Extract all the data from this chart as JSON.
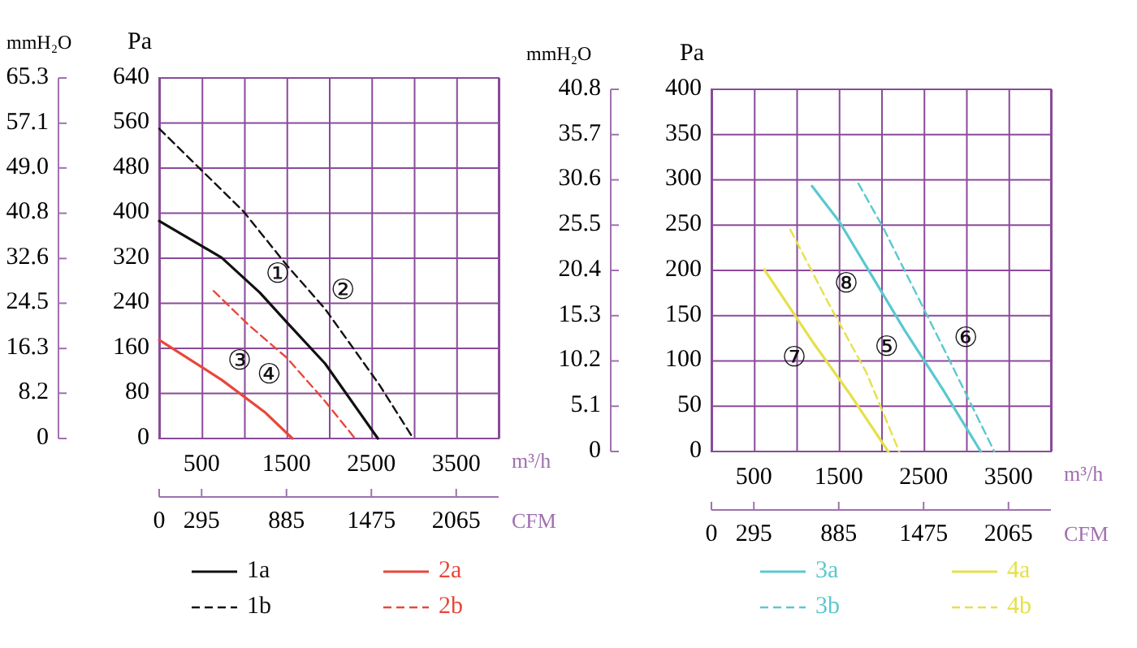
{
  "chart_data": [
    {
      "type": "line",
      "xlabel": "m³/h",
      "x2label": "CFM",
      "ylabel": "Pa",
      "y2label": "mmH₂O",
      "xlim": [
        0,
        4000
      ],
      "xticks": [
        500,
        {
          "value": 1000,
          "label": null
        },
        1500,
        {
          "value": 2000,
          "label": null
        },
        2500,
        {
          "value": 3000,
          "label": null
        },
        3500
      ],
      "x2lim": [
        0,
        2360
      ],
      "x2ticks": [
        0,
        295,
        885,
        1475,
        2065
      ],
      "ylim": [
        0,
        640
      ],
      "yticks": [
        0,
        80,
        160,
        240,
        320,
        400,
        480,
        560,
        640
      ],
      "y2lim": [
        0,
        65.3
      ],
      "y2ticks": [
        0,
        8.2,
        16.3,
        24.5,
        32.6,
        40.8,
        {
          "value": 49,
          "label": "49.0"
        },
        57.1,
        65.3
      ],
      "grid": true,
      "legend": "bottom",
      "series": [
        {
          "name": "1a",
          "color": "#111111",
          "line_style": "solid",
          "x": [
            0,
            737,
            1186,
            1506,
            1955,
            2577
          ],
          "values": [
            386,
            321,
            259,
            206,
            133,
            0
          ]
        },
        {
          "name": "1b",
          "color": "#111111",
          "line_style": "dashed",
          "x": [
            0,
            994,
            1506,
            1955,
            2596,
            2994
          ],
          "values": [
            550,
            403,
            307,
            230,
            95,
            0
          ]
        },
        {
          "name": "2a",
          "color": "#e8473a",
          "line_style": "solid",
          "x": [
            0,
            737,
            1250,
            1570
          ],
          "values": [
            175,
            104,
            46,
            0
          ]
        },
        {
          "name": "2b",
          "color": "#e8473a",
          "line_style": "dashed",
          "x": [
            641,
            1058,
            1506,
            1955,
            2308
          ],
          "values": [
            262,
            201,
            143,
            66,
            0
          ]
        }
      ],
      "annotations": [
        {
          "text": "①",
          "x": 1186,
          "y": 259
        },
        {
          "text": "②",
          "x": 1955,
          "y": 230
        },
        {
          "text": "③",
          "x": 737,
          "y": 104
        },
        {
          "text": "④",
          "x": 1506,
          "y": 143
        }
      ]
    },
    {
      "type": "line",
      "xlabel": "m³/h",
      "x2label": "CFM",
      "ylabel": "Pa",
      "y2label": "mmH₂O",
      "xlim": [
        0,
        4000
      ],
      "xticks": [
        500,
        {
          "value": 1000,
          "label": null
        },
        1500,
        {
          "value": 2000,
          "label": null
        },
        2500,
        {
          "value": 3000,
          "label": null
        },
        3500
      ],
      "x2lim": [
        0,
        2360
      ],
      "x2ticks": [
        0,
        295,
        885,
        1475,
        2065
      ],
      "ylim": [
        0,
        400
      ],
      "yticks": [
        0,
        50,
        100,
        150,
        200,
        250,
        300,
        350,
        400
      ],
      "y2lim": [
        0,
        40.8
      ],
      "y2ticks": [
        0,
        5.1,
        10.2,
        15.3,
        20.4,
        25.5,
        30.6,
        35.7,
        40.8
      ],
      "grid": true,
      "legend": "bottom",
      "series": [
        {
          "name": "3a",
          "color": "#5bc8d0",
          "line_style": "solid",
          "x": [
            1186,
            1506,
            1891,
            2276,
            2724,
            3173
          ],
          "values": [
            293,
            254,
            194,
            134,
            69,
            0
          ]
        },
        {
          "name": "3b",
          "color": "#5bc8d0",
          "line_style": "dashed",
          "x": [
            1731,
            2019,
            2404,
            2788,
            3333
          ],
          "values": [
            296,
            248,
            176,
            104,
            0
          ]
        },
        {
          "name": "4a",
          "color": "#e6e04a",
          "line_style": "solid",
          "x": [
            622,
            1186,
            1635,
            2083
          ],
          "values": [
            201,
            122,
            63,
            0
          ]
        },
        {
          "name": "4b",
          "color": "#e6e04a",
          "line_style": "dashed",
          "x": [
            929,
            1378,
            1827,
            2212
          ],
          "values": [
            245,
            164,
            87,
            0
          ]
        }
      ],
      "annotations": [
        {
          "text": "⑤",
          "x": 2276,
          "y": 134
        },
        {
          "text": "⑥",
          "x": 2788,
          "y": 104
        },
        {
          "text": "⑦",
          "x": 1186,
          "y": 122
        },
        {
          "text": "⑧",
          "x": 1378,
          "y": 164
        }
      ]
    }
  ]
}
